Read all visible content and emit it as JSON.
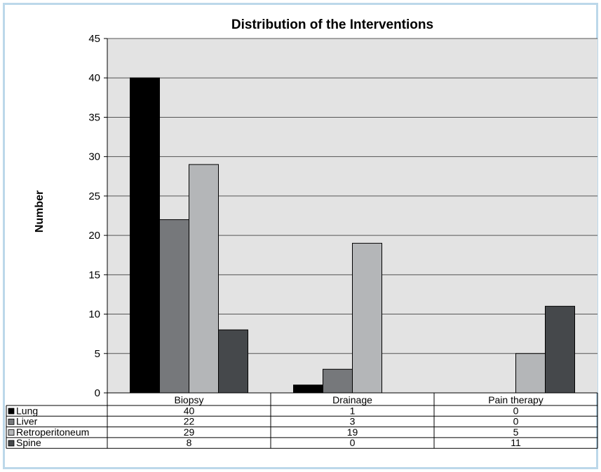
{
  "chart_data": {
    "type": "bar",
    "title": "Distribution of the Interventions",
    "ylabel": "Number",
    "xlabel": "",
    "categories": [
      "Biopsy",
      "Drainage",
      "Pain therapy"
    ],
    "ylim": [
      0,
      45
    ],
    "yticks": [
      0,
      5,
      10,
      15,
      20,
      25,
      30,
      35,
      40,
      45
    ],
    "grid": true,
    "legend": "data-table",
    "series": [
      {
        "name": "Lung",
        "values": [
          40,
          1,
          0
        ],
        "color": "#000000"
      },
      {
        "name": "Liver",
        "values": [
          22,
          3,
          0
        ],
        "color": "#76787b"
      },
      {
        "name": "Retroperitoneum",
        "values": [
          29,
          19,
          5
        ],
        "color": "#b4b6b8"
      },
      {
        "name": "Spine",
        "values": [
          8,
          0,
          11
        ],
        "color": "#45484b"
      }
    ]
  },
  "colors": {
    "plot_background": "#e3e3e3",
    "frame_border": "#bcd8ea",
    "gridline": "#555555"
  }
}
